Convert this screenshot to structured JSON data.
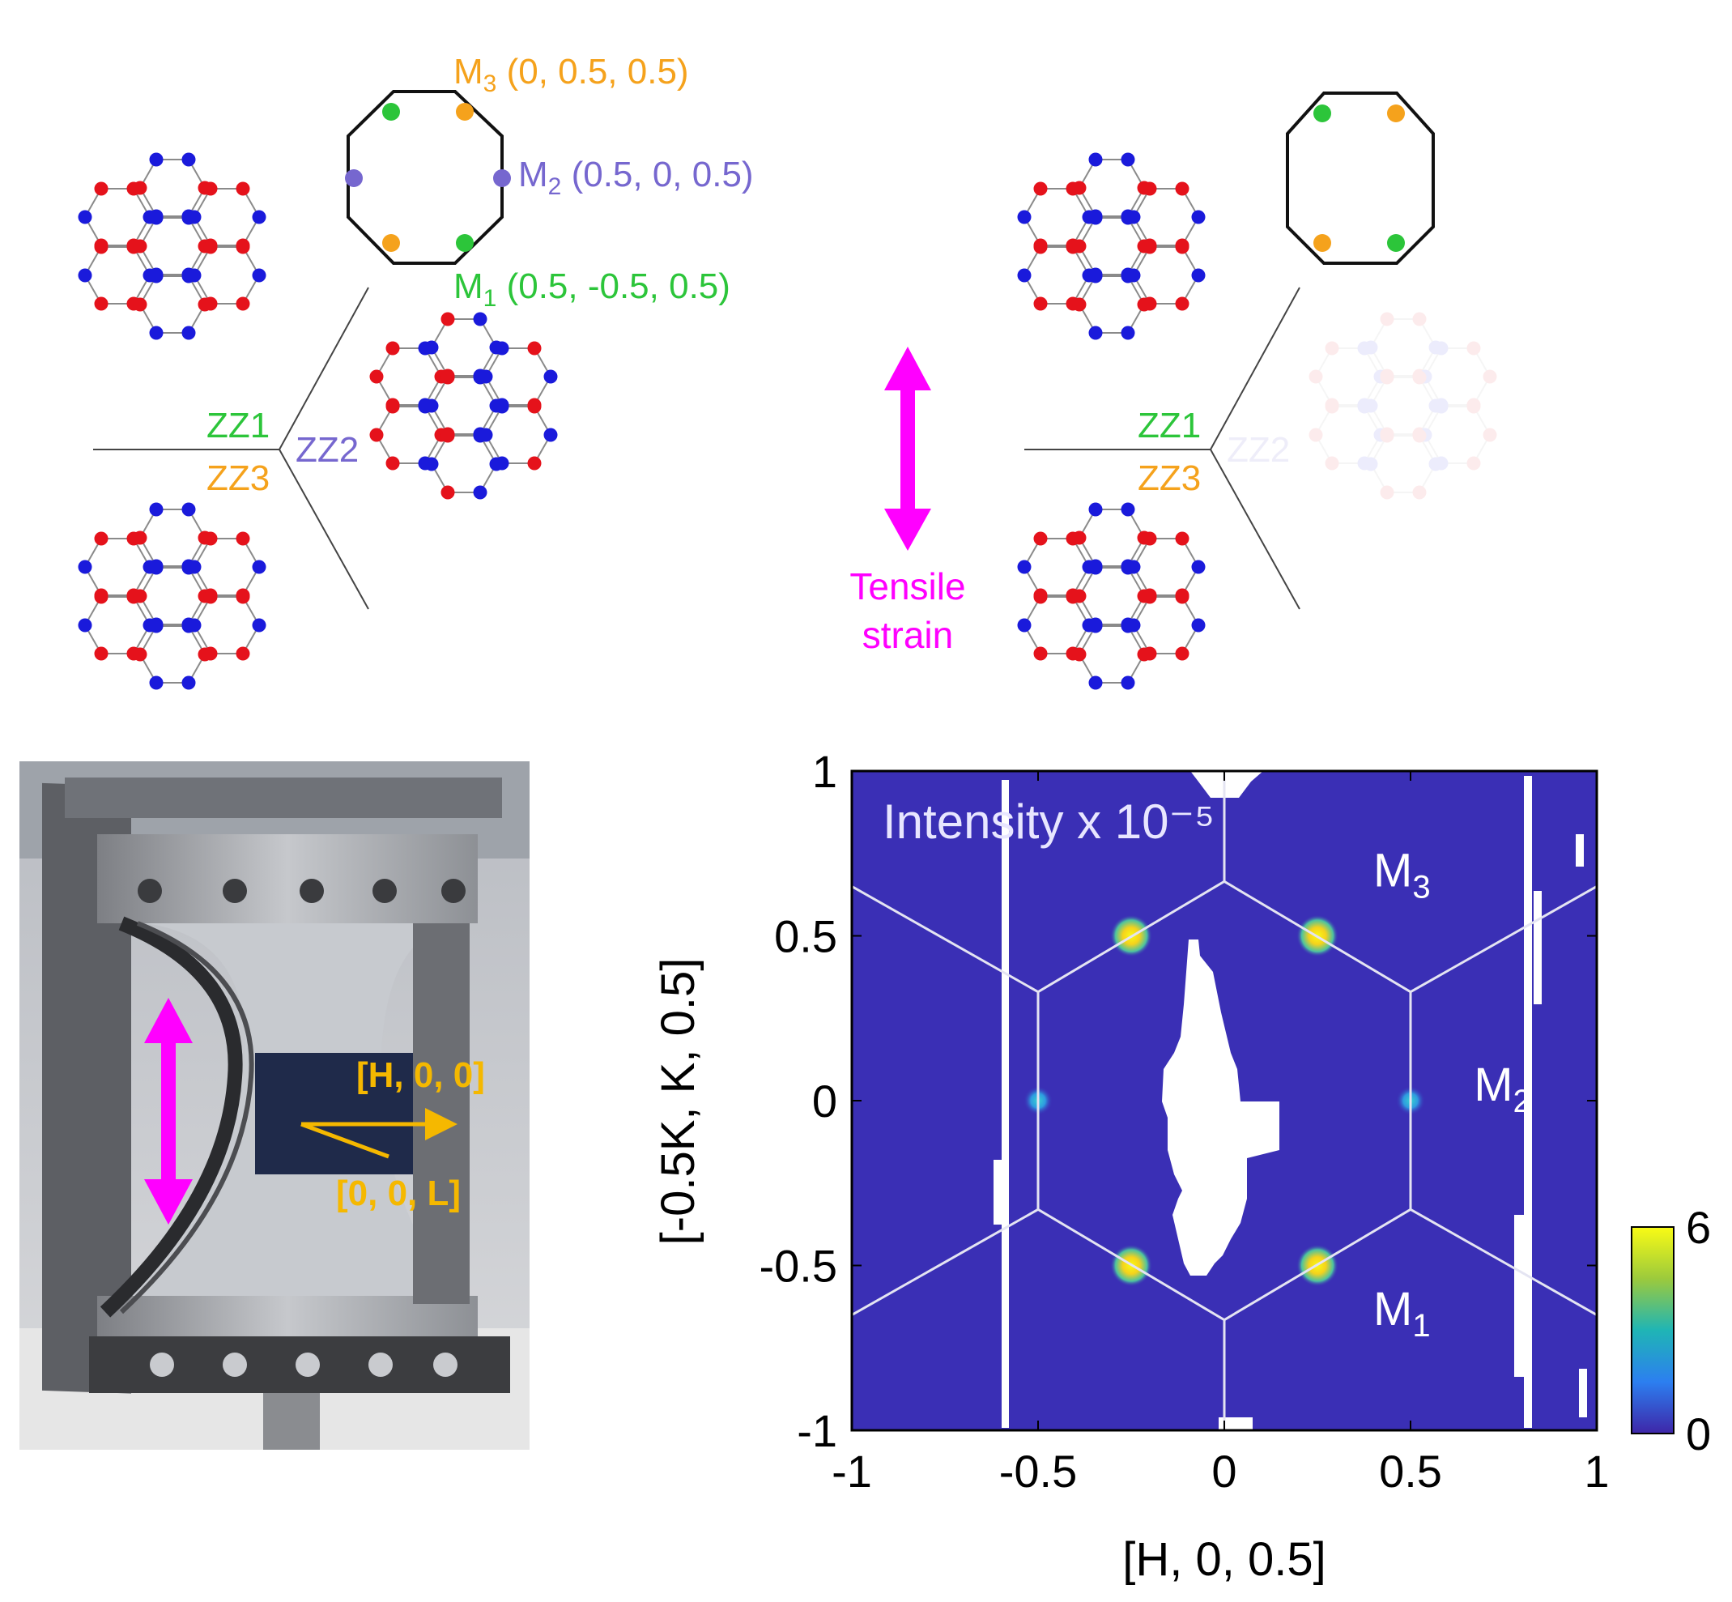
{
  "colors": {
    "red": "#e5121b",
    "blue": "#1a1adb",
    "green": "#2cc53a",
    "orange": "#f5a21c",
    "purple": "#7667cf",
    "magenta": "#ff00ff",
    "gold": "#f5b800",
    "map_bg": "#3a2fb5",
    "bond": "#8a8a8a"
  },
  "left_diagram": {
    "m3": {
      "name": "M",
      "sub": "3",
      "coords": " (0, 0.5, 0.5)"
    },
    "m2": {
      "name": "M",
      "sub": "2",
      "coords": " (0.5, 0, 0.5)"
    },
    "m1": {
      "name": "M",
      "sub": "1",
      "coords": " (0.5, -0.5, 0.5)"
    },
    "zz1": "ZZ1",
    "zz2": "ZZ2",
    "zz3": "ZZ3"
  },
  "strain": {
    "line1": "Tensile",
    "line2": "strain"
  },
  "right_diagram": {
    "zz1": "ZZ1",
    "zz2": "ZZ2",
    "zz3": "ZZ3"
  },
  "photo": {
    "h_axis": "[H, 0, 0]",
    "l_axis": "[0, 0, L]"
  },
  "chart_data": {
    "type": "heatmap",
    "title": "Intensity x 10⁻⁵",
    "xlabel": "[H, 0, 0.5]",
    "ylabel": "[-0.5K, K, 0.5]",
    "xlim": [
      -1,
      1
    ],
    "ylim": [
      -1,
      1
    ],
    "xticks": [
      "-1",
      "-0.5",
      "0",
      "0.5",
      "1"
    ],
    "yticks": [
      "-1",
      "-0.5",
      "0",
      "0.5",
      "1"
    ],
    "colorbar": {
      "min": 0,
      "max": 6,
      "min_label": "0",
      "max_label": "6",
      "colormap": "parula"
    },
    "peaks": [
      {
        "h": -0.25,
        "k": 0.5,
        "intensity": 6
      },
      {
        "h": 0.25,
        "k": 0.5,
        "intensity": 6
      },
      {
        "h": -0.25,
        "k": -0.5,
        "intensity": 6
      },
      {
        "h": 0.25,
        "k": -0.5,
        "intensity": 6
      },
      {
        "h": -0.5,
        "k": 0,
        "intensity": 2
      },
      {
        "h": 0.5,
        "k": 0,
        "intensity": 1.5
      }
    ],
    "labels": [
      {
        "text": "M",
        "sub": "3",
        "h": 0.4,
        "k": 0.65
      },
      {
        "text": "M",
        "sub": "2",
        "h": 0.67,
        "k": 0
      },
      {
        "text": "M",
        "sub": "1",
        "h": 0.4,
        "k": -0.68
      }
    ]
  }
}
